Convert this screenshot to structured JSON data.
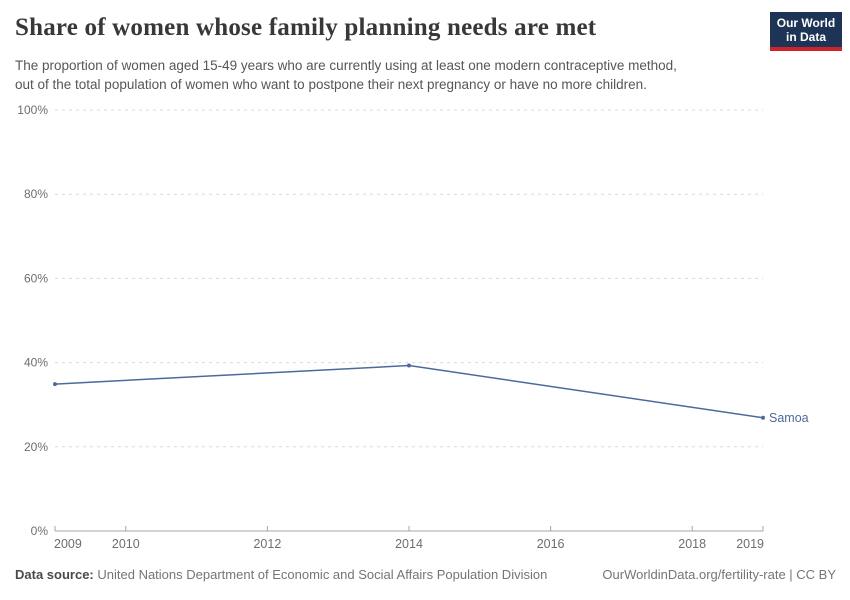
{
  "header": {
    "title": "Share of women whose family planning needs are met",
    "subtitle_lines": [
      "The proportion of women aged 15-49 years who are currently using at least one modern contraceptive method,",
      "out of the total population of women who want to postpone their next pregnancy or have no more children."
    ],
    "logo": {
      "line1": "Our World",
      "line2": "in Data",
      "bg_color": "#1d3456",
      "accent_color": "#cd232d"
    }
  },
  "chart_data": {
    "type": "line",
    "title": "Share of women whose family planning needs are met",
    "x": [
      2009,
      2014,
      2019
    ],
    "series": [
      {
        "name": "Samoa",
        "values": [
          34.9,
          39.3,
          26.9
        ],
        "color": "#4C6A9C"
      }
    ],
    "end_label": "Samoa",
    "xlim": [
      2009,
      2019
    ],
    "ylim": [
      0,
      100
    ],
    "y_ticks": [
      0,
      20,
      40,
      60,
      80,
      100
    ],
    "y_tick_labels": [
      "0%",
      "20%",
      "40%",
      "60%",
      "80%",
      "100%"
    ],
    "x_ticks": [
      2009,
      2010,
      2012,
      2014,
      2016,
      2018,
      2019
    ],
    "x_tick_labels": [
      "2009",
      "2010",
      "2012",
      "2014",
      "2016",
      "2018",
      "2019"
    ],
    "grid": "horizontal-dashed",
    "legend_position": "end-of-line",
    "colors": {
      "gridline": "#d9d9d9",
      "axis": "#a5a5a5",
      "tick_label": "#6e6e6e"
    }
  },
  "footer": {
    "datasource_label": "Data source:",
    "datasource_value": "United Nations Department of Economic and Social Affairs Population Division",
    "link": "OurWorldinData.org/fertility-rate | CC BY"
  }
}
